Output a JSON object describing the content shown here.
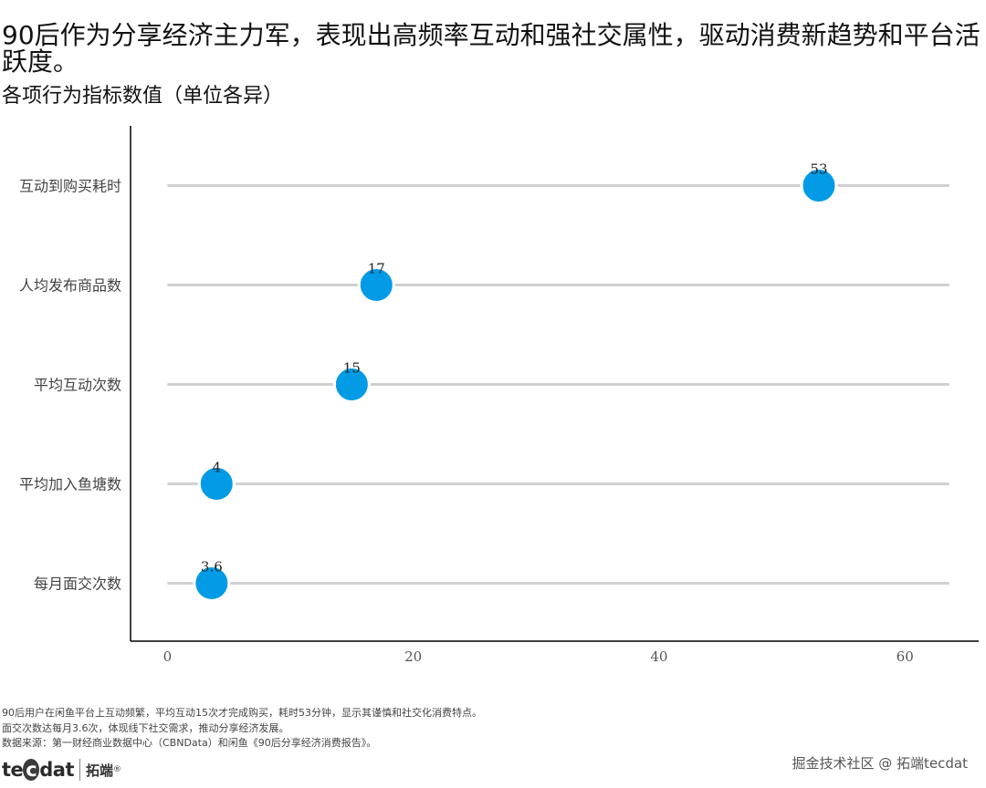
{
  "title": "90后作为分享经济主力军，表现出高频率互动和强社交属性，驱动消费新趋势和平台活跃度。",
  "subtitle": "各项行为指标数值（单位各异）",
  "chart_data": {
    "type": "lollipop",
    "orientation": "horizontal",
    "categories": [
      "互动到购买耗时",
      "人均发布商品数",
      "平均互动次数",
      "平均加入鱼塘数",
      "每月面交次数"
    ],
    "values": [
      53,
      17,
      15,
      4,
      3.6
    ],
    "data_labels": [
      "53",
      "17",
      "15",
      "4",
      "3.6"
    ],
    "xlim": [
      -3,
      66
    ],
    "x_ticks": [
      0,
      20,
      40,
      60
    ],
    "x_tick_labels": [
      "0",
      "20",
      "40",
      "60"
    ],
    "stem_range": [
      0,
      63.6
    ],
    "grid": false,
    "colors": {
      "point": "#039be5",
      "stem": "#d0d0d0",
      "axis": "#000000"
    }
  },
  "notes": [
    "90后用户在闲鱼平台上互动频繁，平均互动15次才完成购买，耗时53分钟，显示其谨慎和社交化消费特点。",
    "面交次数达每月3.6次，体现线下社交需求，推动分享经济发展。",
    "数据来源：第一财经商业数据中心（CBNData）和闲鱼《90后分享经济消费报告》。"
  ],
  "logo": {
    "mark_prefix": "te",
    "mark_circle": "c",
    "mark_suffix": "dat",
    "cn": "拓端",
    "reg": "®"
  },
  "watermark": "掘金技术社区 @ 拓端tecdat"
}
